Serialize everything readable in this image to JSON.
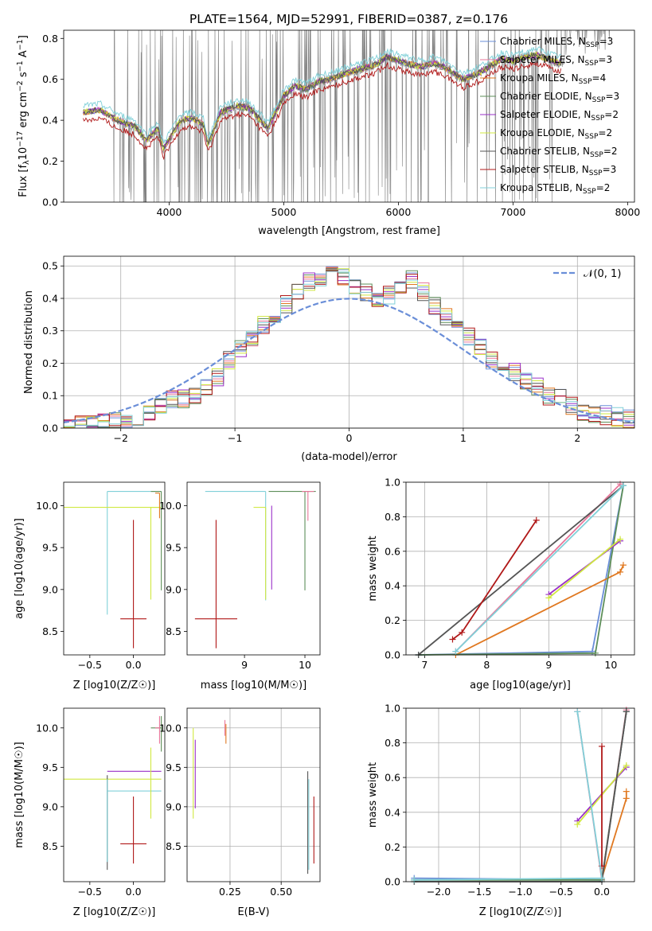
{
  "title": "PLATE=1564, MJD=52991, FIBERID=0387, z=0.176",
  "chart_data": [
    {
      "id": "spectrum",
      "type": "line",
      "xlabel": "wavelength [Angstrom, rest frame]",
      "ylabel": "Flux [f_λ 10^-17 erg cm^-2 s^-1 A^-1]",
      "xlim": [
        3080,
        8060
      ],
      "ylim": [
        0,
        0.84
      ],
      "xticks": [
        4000,
        5000,
        6000,
        7000,
        8000
      ],
      "yticks": [
        0.0,
        0.2,
        0.4,
        0.6,
        0.8
      ],
      "grid": false,
      "legend_position": "top-right",
      "observed_spectrum_color": "#808080",
      "model_points": [
        [
          3250,
          0.44
        ],
        [
          3400,
          0.45
        ],
        [
          3550,
          0.4
        ],
        [
          3700,
          0.37
        ],
        [
          3800,
          0.3
        ],
        [
          3900,
          0.36
        ],
        [
          3950,
          0.26
        ],
        [
          4100,
          0.4
        ],
        [
          4200,
          0.41
        ],
        [
          4300,
          0.38
        ],
        [
          4340,
          0.28
        ],
        [
          4450,
          0.44
        ],
        [
          4600,
          0.47
        ],
        [
          4700,
          0.46
        ],
        [
          4862,
          0.36
        ],
        [
          5000,
          0.52
        ],
        [
          5100,
          0.57
        ],
        [
          5200,
          0.55
        ],
        [
          5300,
          0.59
        ],
        [
          5400,
          0.6
        ],
        [
          5600,
          0.64
        ],
        [
          5800,
          0.67
        ],
        [
          5900,
          0.71
        ],
        [
          6000,
          0.69
        ],
        [
          6200,
          0.66
        ],
        [
          6300,
          0.68
        ],
        [
          6400,
          0.66
        ],
        [
          6563,
          0.6
        ],
        [
          6700,
          0.63
        ],
        [
          6900,
          0.7
        ],
        [
          7000,
          0.69
        ],
        [
          7200,
          0.72
        ],
        [
          7400,
          0.68
        ]
      ],
      "series": [
        {
          "name": "Chabrier MILES, N_SSP=3",
          "label_main": "Chabrier MILES, N",
          "label_sub": "SSP",
          "label_tail": "=3",
          "color": "#6a8ed8"
        },
        {
          "name": "Salpeter MILES, N_SSP=3",
          "label_main": "Salpeter MILES, N",
          "label_sub": "SSP",
          "label_tail": "=3",
          "color": "#e8779a"
        },
        {
          "name": "Kroupa MILES, N_SSP=4",
          "label_main": "Kroupa MILES, N",
          "label_sub": "SSP",
          "label_tail": "=4",
          "color": "#e07820"
        },
        {
          "name": "Chabrier ELODIE, N_SSP=3",
          "label_main": "Chabrier ELODIE, N",
          "label_sub": "SSP",
          "label_tail": "=3",
          "color": "#5e8f5a"
        },
        {
          "name": "Salpeter ELODIE, N_SSP=2",
          "label_main": "Salpeter ELODIE, N",
          "label_sub": "SSP",
          "label_tail": "=2",
          "color": "#9a30c8"
        },
        {
          "name": "Kroupa ELODIE, N_SSP=2",
          "label_main": "Kroupa ELODIE, N",
          "label_sub": "SSP",
          "label_tail": "=2",
          "color": "#d0e840"
        },
        {
          "name": "Chabrier STELIB, N_SSP=2",
          "label_main": "Chabrier STELIB, N",
          "label_sub": "SSP",
          "label_tail": "=2",
          "color": "#555555"
        },
        {
          "name": "Salpeter STELIB, N_SSP=3",
          "label_main": "Salpeter STELIB, N",
          "label_sub": "SSP",
          "label_tail": "=3",
          "color": "#b01818"
        },
        {
          "name": "Kroupa STELIB, N_SSP=2",
          "label_main": "Kroupa STELIB, N",
          "label_sub": "SSP",
          "label_tail": "=2",
          "color": "#80d0d8"
        }
      ]
    },
    {
      "id": "residuals",
      "type": "line",
      "xlabel": "(data-model)/error",
      "ylabel": "Normed distribution",
      "xlim": [
        -2.5,
        2.5
      ],
      "ylim": [
        0,
        0.53
      ],
      "xticks": [
        -2,
        -1,
        0,
        1,
        2
      ],
      "yticks": [
        0.0,
        0.1,
        0.2,
        0.3,
        0.4,
        0.5
      ],
      "grid": true,
      "legend_position": "top-right",
      "legend_label": "𝒩(0, 1)",
      "gaussian_color": "#6a8ed8",
      "hist_edges_start": -2.5,
      "hist_bin_width": 0.1,
      "hist_values": [
        0.0,
        0.01,
        0.015,
        0.02,
        0.02,
        0.03,
        0.035,
        0.05,
        0.065,
        0.085,
        0.09,
        0.1,
        0.13,
        0.16,
        0.21,
        0.24,
        0.28,
        0.32,
        0.34,
        0.38,
        0.42,
        0.45,
        0.46,
        0.48,
        0.47,
        0.44,
        0.42,
        0.4,
        0.41,
        0.44,
        0.46,
        0.42,
        0.38,
        0.34,
        0.31,
        0.28,
        0.25,
        0.21,
        0.19,
        0.17,
        0.15,
        0.13,
        0.1,
        0.09,
        0.07,
        0.05,
        0.045,
        0.04,
        0.035,
        0.03
      ]
    },
    {
      "id": "age_vs_Z",
      "type": "scatter",
      "xlabel": "Z [log10(Z/Z☉)]",
      "ylabel": "age [log10(age/yr)]",
      "xlim": [
        -0.8,
        0.36
      ],
      "ylim": [
        8.22,
        10.28
      ],
      "xticks": [
        -0.5,
        0.0
      ],
      "yticks": [
        8.5,
        9.0,
        9.5,
        10.0
      ],
      "grid": false,
      "points": [
        {
          "x": 0.0,
          "y": 8.65,
          "xerr": 0.15,
          "yerr_lo": 0.35,
          "yerr_hi": 1.18,
          "color": "#b01818"
        },
        {
          "x": -0.3,
          "y": 10.17,
          "xerr_lo": 0.0,
          "xerr_hi": 0.62,
          "yerr_lo": 1.47,
          "yerr_hi": 0.0,
          "color": "#80d0d8"
        },
        {
          "x": -0.3,
          "y": 9.98,
          "xerr_lo": 0.5,
          "xerr_hi": 0.62,
          "yerr_lo": 0.0,
          "yerr_hi": 0.0,
          "color": "#d0e840"
        },
        {
          "x": 0.2,
          "y": 9.98,
          "xerr_lo": 0.0,
          "xerr_hi": 0.12,
          "yerr_lo": 1.1,
          "yerr_hi": 0.0,
          "color": "#d0e840"
        },
        {
          "x": 0.32,
          "y": 10.17,
          "xerr_lo": 0.12,
          "xerr_hi": 0.0,
          "yerr_lo": 1.18,
          "yerr_hi": 0.0,
          "color": "#5e8f5a"
        },
        {
          "x": 0.3,
          "y": 10.15,
          "xerr_lo": 0.05,
          "xerr_hi": 0.0,
          "yerr_lo": 0.3,
          "yerr_hi": 0.0,
          "color": "#e07820"
        }
      ]
    },
    {
      "id": "age_vs_mass",
      "type": "scatter",
      "xlabel": "mass [log10(M/M☉)]",
      "ylabel": "",
      "xlim": [
        8.05,
        10.25
      ],
      "ylim": [
        8.22,
        10.28
      ],
      "xticks": [
        9,
        10
      ],
      "yticks": [
        8.5,
        9.0,
        9.5,
        10.0
      ],
      "grid": false,
      "points": [
        {
          "x": 8.53,
          "y": 8.65,
          "xerr": 0.35,
          "yerr_lo": 0.35,
          "yerr_hi": 1.18,
          "color": "#b01818"
        },
        {
          "x": 9.35,
          "y": 10.17,
          "xerr_lo": 1.0,
          "xerr_hi": 0.0,
          "yerr_lo": 1.3,
          "yerr_hi": 0.0,
          "color": "#80d0d8"
        },
        {
          "x": 9.35,
          "y": 9.98,
          "xerr_lo": 0.2,
          "xerr_hi": 0.0,
          "yerr_lo": 1.1,
          "yerr_hi": 0.0,
          "color": "#d0e840"
        },
        {
          "x": 9.45,
          "y": 10.0,
          "xerr_lo": 0.0,
          "xerr_hi": 0.0,
          "yerr_lo": 1.0,
          "yerr_hi": 0.0,
          "color": "#9a30c8"
        },
        {
          "x": 10.0,
          "y": 10.17,
          "xerr_lo": 0.6,
          "xerr_hi": 0.18,
          "yerr_lo": 1.18,
          "yerr_hi": 0.0,
          "color": "#5e8f5a"
        },
        {
          "x": 10.05,
          "y": 10.17,
          "xerr_lo": 0.1,
          "xerr_hi": 0.1,
          "yerr_lo": 0.35,
          "yerr_hi": 0.0,
          "color": "#e8779a"
        }
      ]
    },
    {
      "id": "weight_vs_age",
      "type": "line",
      "xlabel": "age [log10(age/yr)]",
      "ylabel": "mass weight",
      "xlim": [
        6.7,
        10.38
      ],
      "ylim": [
        0,
        1.0
      ],
      "xticks": [
        7,
        8,
        9,
        10
      ],
      "yticks": [
        0.0,
        0.2,
        0.4,
        0.6,
        0.8,
        1.0
      ],
      "grid": true,
      "series": [
        {
          "color": "#6a8ed8",
          "points": [
            [
              6.9,
              0.0
            ],
            [
              9.7,
              0.02
            ],
            [
              10.2,
              0.98
            ]
          ]
        },
        {
          "color": "#e8779a",
          "points": [
            [
              7.5,
              0.02
            ],
            [
              10.15,
              0.99
            ]
          ]
        },
        {
          "color": "#e07820",
          "points": [
            [
              7.5,
              0.0
            ],
            [
              10.15,
              0.48
            ],
            [
              10.2,
              0.52
            ]
          ]
        },
        {
          "color": "#5e8f5a",
          "points": [
            [
              6.9,
              0.0
            ],
            [
              9.75,
              0.01
            ],
            [
              10.2,
              0.98
            ]
          ]
        },
        {
          "color": "#9a30c8",
          "points": [
            [
              9.0,
              0.35
            ],
            [
              10.15,
              0.66
            ]
          ]
        },
        {
          "color": "#d0e840",
          "points": [
            [
              9.0,
              0.33
            ],
            [
              10.15,
              0.67
            ]
          ]
        },
        {
          "color": "#555555",
          "points": [
            [
              6.9,
              0.0
            ],
            [
              10.2,
              0.98
            ]
          ]
        },
        {
          "color": "#b01818",
          "points": [
            [
              7.45,
              0.09
            ],
            [
              7.6,
              0.13
            ],
            [
              8.8,
              0.78
            ]
          ]
        },
        {
          "color": "#80d0d8",
          "points": [
            [
              7.5,
              0.02
            ],
            [
              10.2,
              0.98
            ]
          ]
        }
      ]
    },
    {
      "id": "mass_vs_Z",
      "type": "scatter",
      "xlabel": "Z [log10(Z/Z☉)]",
      "ylabel": "mass [log10(M/M☉)]",
      "xlim": [
        -0.8,
        0.36
      ],
      "ylim": [
        8.05,
        10.25
      ],
      "xticks": [
        -0.5,
        0.0
      ],
      "yticks": [
        8.5,
        9.0,
        9.5,
        10.0
      ],
      "grid": false,
      "points": [
        {
          "x": 0.0,
          "y": 8.53,
          "xerr": 0.15,
          "yerr_lo": 0.25,
          "yerr_hi": 0.6,
          "color": "#b01818"
        },
        {
          "x": -0.3,
          "y": 9.35,
          "xerr_lo": 0.5,
          "xerr_hi": 0.62,
          "yerr_lo": 0.0,
          "yerr_hi": 0.0,
          "color": "#d0e840"
        },
        {
          "x": -0.3,
          "y": 9.45,
          "xerr_lo": 0.0,
          "xerr_hi": 0.62,
          "yerr_lo": 0.0,
          "yerr_hi": 0.0,
          "color": "#9a30c8"
        },
        {
          "x": -0.3,
          "y": 9.2,
          "xerr_lo": 0.0,
          "xerr_hi": 0.0,
          "yerr_lo": 1.0,
          "yerr_hi": 0.2,
          "color": "#555555"
        },
        {
          "x": -0.3,
          "y": 9.2,
          "xerr_lo": 0.0,
          "xerr_hi": 0.62,
          "yerr_lo": 0.9,
          "yerr_hi": 0.15,
          "color": "#80d0d8"
        },
        {
          "x": 0.32,
          "y": 10.0,
          "xerr_lo": 0.12,
          "xerr_hi": 0.0,
          "yerr_lo": 0.3,
          "yerr_hi": 0.15,
          "color": "#5e8f5a"
        },
        {
          "x": 0.3,
          "y": 10.0,
          "xerr_lo": 0.05,
          "xerr_hi": 0.0,
          "yerr_lo": 0.2,
          "yerr_hi": 0.15,
          "color": "#e8779a"
        },
        {
          "x": 0.2,
          "y": 9.35,
          "xerr_lo": 0.0,
          "xerr_hi": 0.0,
          "yerr_lo": 0.5,
          "yerr_hi": 0.4,
          "color": "#d0e840"
        }
      ]
    },
    {
      "id": "mass_vs_ebv",
      "type": "scatter",
      "xlabel": "E(B-V)",
      "ylabel": "",
      "xlim": [
        0.04,
        0.69
      ],
      "ylim": [
        8.05,
        10.25
      ],
      "xticks": [
        0.25,
        0.5
      ],
      "yticks": [
        8.5,
        9.0,
        9.5,
        10.0
      ],
      "grid": true,
      "segments": [
        {
          "x": 0.07,
          "y0": 8.85,
          "y1": 10.0,
          "color": "#d0e840"
        },
        {
          "x": 0.08,
          "y0": 8.98,
          "y1": 9.85,
          "color": "#9a30c8"
        },
        {
          "x": 0.23,
          "y0": 9.8,
          "y1": 10.05,
          "color": "#e07820"
        },
        {
          "x": 0.225,
          "y0": 9.9,
          "y1": 10.1,
          "color": "#e8779a"
        },
        {
          "x": 0.63,
          "y0": 8.15,
          "y1": 9.45,
          "color": "#555555"
        },
        {
          "x": 0.635,
          "y0": 8.2,
          "y1": 9.35,
          "color": "#80d0d8"
        },
        {
          "x": 0.66,
          "y0": 8.28,
          "y1": 9.13,
          "color": "#b01818"
        }
      ]
    },
    {
      "id": "weight_vs_Z",
      "type": "line",
      "xlabel": "Z [log10(Z/Z☉)]",
      "ylabel": "mass weight",
      "xlim": [
        -2.4,
        0.4
      ],
      "ylim": [
        0,
        1.0
      ],
      "xticks": [
        -2.0,
        -1.5,
        -1.0,
        -0.5,
        0.0
      ],
      "yticks": [
        0.0,
        0.2,
        0.4,
        0.6,
        0.8,
        1.0
      ],
      "grid": true,
      "series": [
        {
          "color": "#6a8ed8",
          "points": [
            [
              -2.3,
              0.02
            ],
            [
              0.0,
              0.01
            ],
            [
              0.3,
              0.98
            ]
          ]
        },
        {
          "color": "#e8779a",
          "points": [
            [
              -0.3,
              0.98
            ],
            [
              0.0,
              0.01
            ],
            [
              0.3,
              0.99
            ]
          ]
        },
        {
          "color": "#e07820",
          "points": [
            [
              0.0,
              0.02
            ],
            [
              0.3,
              0.48
            ],
            [
              0.3,
              0.52
            ]
          ]
        },
        {
          "color": "#5e8f5a",
          "points": [
            [
              -2.3,
              0.01
            ],
            [
              0.0,
              0.01
            ],
            [
              0.3,
              0.98
            ]
          ]
        },
        {
          "color": "#9a30c8",
          "points": [
            [
              -0.3,
              0.35
            ],
            [
              0.3,
              0.66
            ]
          ]
        },
        {
          "color": "#d0e840",
          "points": [
            [
              -0.3,
              0.33
            ],
            [
              0.3,
              0.67
            ]
          ]
        },
        {
          "color": "#555555",
          "points": [
            [
              -2.3,
              0.0
            ],
            [
              0.0,
              0.0
            ],
            [
              0.3,
              0.98
            ]
          ]
        },
        {
          "color": "#b01818",
          "points": [
            [
              0.0,
              0.09
            ],
            [
              0.0,
              0.78
            ]
          ]
        },
        {
          "color": "#80d0d8",
          "points": [
            [
              -0.3,
              0.98
            ],
            [
              0.0,
              0.02
            ],
            [
              -2.3,
              0.01
            ]
          ]
        }
      ]
    }
  ]
}
